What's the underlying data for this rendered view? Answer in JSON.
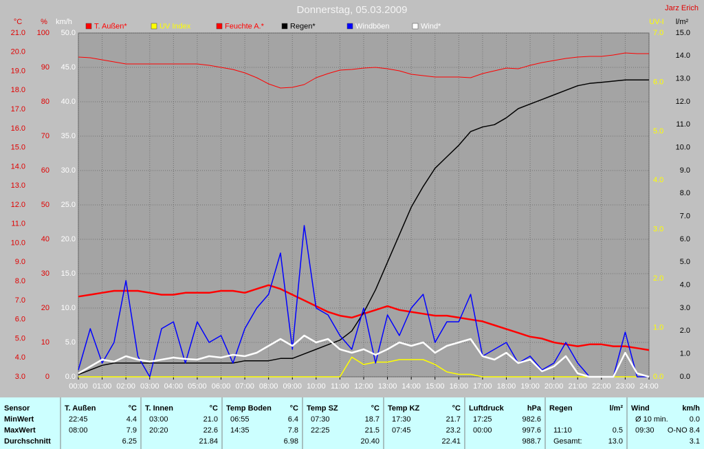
{
  "chart_data": {
    "type": "line",
    "title": "Donnerstag, 05.03.2009",
    "author": "Jarz Erich",
    "ylabel": "km/h",
    "y3label": "°C",
    "y4label": "%",
    "y5label": "UV-I",
    "y2label": "l/m²",
    "grid": true,
    "x": [
      0,
      0.5,
      1,
      1.5,
      2,
      2.5,
      3,
      3.5,
      4,
      4.5,
      5,
      5.5,
      6,
      6.5,
      7,
      7.5,
      8,
      8.5,
      9,
      9.5,
      10,
      10.5,
      11,
      11.5,
      12,
      12.5,
      13,
      13.5,
      14,
      14.5,
      15,
      15.5,
      16,
      16.5,
      17,
      17.5,
      18,
      18.5,
      19,
      19.5,
      20,
      20.5,
      21,
      21.5,
      22,
      22.5,
      23,
      23.5,
      24
    ],
    "xlim": [
      0,
      24
    ],
    "xticks": [
      {
        "value": 0,
        "label": "00:00"
      },
      {
        "value": 1,
        "label": "01:00"
      },
      {
        "value": 2,
        "label": "02:00"
      },
      {
        "value": 3,
        "label": "03:00"
      },
      {
        "value": 4,
        "label": "04:00"
      },
      {
        "value": 5,
        "label": "05:00"
      },
      {
        "value": 6,
        "label": "06:00"
      },
      {
        "value": 7,
        "label": "07:00"
      },
      {
        "value": 8,
        "label": "08:00"
      },
      {
        "value": 9,
        "label": "09:00"
      },
      {
        "value": 10,
        "label": "10:00"
      },
      {
        "value": 11,
        "label": "11:00"
      },
      {
        "value": 12,
        "label": "12:00"
      },
      {
        "value": 13,
        "label": "13:00"
      },
      {
        "value": 14,
        "label": "14:00"
      },
      {
        "value": 15,
        "label": "15:00"
      },
      {
        "value": 16,
        "label": "16:00"
      },
      {
        "value": 17,
        "label": "17:00"
      },
      {
        "value": 18,
        "label": "18:00"
      },
      {
        "value": 19,
        "label": "19:00"
      },
      {
        "value": 20,
        "label": "20:00"
      },
      {
        "value": 21,
        "label": "21:00"
      },
      {
        "value": 22,
        "label": "22:00"
      },
      {
        "value": 23,
        "label": "23:00"
      },
      {
        "value": 24,
        "label": "24:00"
      }
    ],
    "ylim": [
      0,
      50
    ],
    "yticks": [
      {
        "value": 0,
        "label": "0.0"
      },
      {
        "value": 5,
        "label": "5.0"
      },
      {
        "value": 10,
        "label": "10.0"
      },
      {
        "value": 15,
        "label": "15.0"
      },
      {
        "value": 20,
        "label": "20.0"
      },
      {
        "value": 25,
        "label": "25.0"
      },
      {
        "value": 30,
        "label": "30.0"
      },
      {
        "value": 35,
        "label": "35.0"
      },
      {
        "value": 40,
        "label": "40.0"
      },
      {
        "value": 45,
        "label": "45.0"
      },
      {
        "value": 50,
        "label": "50.0"
      }
    ],
    "y3lim": [
      3,
      21
    ],
    "y3ticks": [
      {
        "value": 3,
        "label": "3.0"
      },
      {
        "value": 4,
        "label": "4.0"
      },
      {
        "value": 5,
        "label": "5.0"
      },
      {
        "value": 6,
        "label": "6.0"
      },
      {
        "value": 7,
        "label": "7.0"
      },
      {
        "value": 8,
        "label": "8.0"
      },
      {
        "value": 9,
        "label": "9.0"
      },
      {
        "value": 10,
        "label": "10.0"
      },
      {
        "value": 11,
        "label": "11.0"
      },
      {
        "value": 12,
        "label": "12.0"
      },
      {
        "value": 13,
        "label": "13.0"
      },
      {
        "value": 14,
        "label": "14.0"
      },
      {
        "value": 15,
        "label": "15.0"
      },
      {
        "value": 16,
        "label": "16.0"
      },
      {
        "value": 17,
        "label": "17.0"
      },
      {
        "value": 18,
        "label": "18.0"
      },
      {
        "value": 19,
        "label": "19.0"
      },
      {
        "value": 20,
        "label": "20.0"
      },
      {
        "value": 21,
        "label": "21.0"
      }
    ],
    "y4lim": [
      0,
      100
    ],
    "y4ticks": [
      0,
      10,
      20,
      30,
      40,
      50,
      60,
      70,
      80,
      90,
      100
    ],
    "y5lim": [
      0,
      7
    ],
    "y5ticks": [
      {
        "value": 0,
        "label": "0.0"
      },
      {
        "value": 1,
        "label": "1.0"
      },
      {
        "value": 2,
        "label": "2.0"
      },
      {
        "value": 3,
        "label": "3.0"
      },
      {
        "value": 4,
        "label": "4.0"
      },
      {
        "value": 5,
        "label": "5.0"
      },
      {
        "value": 6,
        "label": "6.0"
      },
      {
        "value": 7,
        "label": "7.0"
      }
    ],
    "y2lim": [
      0,
      15
    ],
    "y2ticks": [
      {
        "value": 0,
        "label": "0.0"
      },
      {
        "value": 1,
        "label": "1.0"
      },
      {
        "value": 2,
        "label": "2.0"
      },
      {
        "value": 3,
        "label": "3.0"
      },
      {
        "value": 4,
        "label": "4.0"
      },
      {
        "value": 5,
        "label": "5.0"
      },
      {
        "value": 6,
        "label": "6.0"
      },
      {
        "value": 7,
        "label": "7.0"
      },
      {
        "value": 8,
        "label": "8.0"
      },
      {
        "value": 9,
        "label": "9.0"
      },
      {
        "value": 10,
        "label": "10.0"
      },
      {
        "value": 11,
        "label": "11.0"
      },
      {
        "value": 12,
        "label": "12.0"
      },
      {
        "value": 13,
        "label": "13.0"
      },
      {
        "value": 14,
        "label": "14.0"
      },
      {
        "value": 15,
        "label": "15.0"
      }
    ],
    "series": [
      {
        "name": "T. Außen*",
        "color": "#ff0000",
        "axis": "y3",
        "width": 2.5,
        "values": [
          7.2,
          7.3,
          7.4,
          7.5,
          7.5,
          7.5,
          7.4,
          7.3,
          7.3,
          7.4,
          7.4,
          7.4,
          7.5,
          7.5,
          7.4,
          7.6,
          7.8,
          7.6,
          7.3,
          7.0,
          6.7,
          6.4,
          6.2,
          6.1,
          6.3,
          6.5,
          6.7,
          6.5,
          6.4,
          6.3,
          6.2,
          6.2,
          6.1,
          6.0,
          5.9,
          5.7,
          5.5,
          5.3,
          5.1,
          5.0,
          4.8,
          4.7,
          4.6,
          4.7,
          4.7,
          4.6,
          4.6,
          4.5,
          4.4
        ]
      },
      {
        "name": "UV Index",
        "color": "#ffff00",
        "axis": "y5",
        "width": 1.5,
        "values": [
          0,
          0,
          0,
          0,
          0,
          0,
          0,
          0,
          0,
          0,
          0,
          0,
          0,
          0,
          0,
          0,
          0,
          0,
          0,
          0,
          0,
          0,
          0,
          0.4,
          0.25,
          0.3,
          0.3,
          0.35,
          0.35,
          0.35,
          0.25,
          0.1,
          0.05,
          0.05,
          0,
          0,
          0,
          0,
          0,
          0,
          0,
          0,
          0,
          0,
          0,
          0,
          0,
          0,
          0
        ]
      },
      {
        "name": "Feuchte A.*",
        "color": "#ff0000",
        "axis": "y4",
        "width": 1,
        "values": [
          93,
          92.8,
          92.2,
          91.6,
          91,
          91,
          91,
          91,
          91,
          91,
          91,
          90.6,
          90,
          89.4,
          88.4,
          87,
          85.2,
          84,
          84.2,
          85,
          87,
          88.2,
          89.2,
          89.4,
          89.8,
          90,
          89.6,
          89,
          88,
          87.6,
          87.2,
          87.2,
          87.2,
          87,
          88.2,
          89,
          89.8,
          89.6,
          90.6,
          91.4,
          92,
          92.6,
          93,
          93.2,
          93.2,
          93.6,
          94.2,
          94,
          94
        ]
      },
      {
        "name": "Regen*",
        "color": "#000000",
        "axis": "y2",
        "width": 1.5,
        "values": [
          0.1,
          0.3,
          0.5,
          0.6,
          0.6,
          0.6,
          0.6,
          0.6,
          0.6,
          0.6,
          0.6,
          0.6,
          0.6,
          0.6,
          0.7,
          0.7,
          0.7,
          0.8,
          0.8,
          1.0,
          1.2,
          1.4,
          1.6,
          2.0,
          2.8,
          3.8,
          5.0,
          6.2,
          7.4,
          8.3,
          9.1,
          9.6,
          10.1,
          10.7,
          10.9,
          11.0,
          11.3,
          11.7,
          11.9,
          12.1,
          12.3,
          12.5,
          12.7,
          12.8,
          12.85,
          12.9,
          12.95,
          12.95,
          12.95
        ]
      },
      {
        "name": "Windböen",
        "color": "#0000ff",
        "axis": "y",
        "width": 1.5,
        "values": [
          1,
          7,
          2,
          5,
          14,
          3,
          0,
          7,
          8,
          2,
          8,
          5,
          6,
          2,
          7,
          10,
          12,
          18,
          4,
          22,
          10,
          9,
          6,
          4,
          10,
          2,
          9,
          6,
          10,
          12,
          5,
          8,
          8,
          12,
          3,
          4,
          5,
          2,
          3,
          1,
          2,
          5,
          2,
          0,
          0,
          0,
          6.5,
          0,
          0
        ]
      },
      {
        "name": "Wind*",
        "color": "#ffffff",
        "axis": "y",
        "width": 2.5,
        "values": [
          0.5,
          1.5,
          2.5,
          2.2,
          3.0,
          2.5,
          2.2,
          2.5,
          2.8,
          2.6,
          2.5,
          3.0,
          2.8,
          3.2,
          3.0,
          3.5,
          4.5,
          5.5,
          4.5,
          6.0,
          5.0,
          5.5,
          4.0,
          3.5,
          4.0,
          3.2,
          4.0,
          5.0,
          4.5,
          5.0,
          3.5,
          4.5,
          5.0,
          5.5,
          3.0,
          2.5,
          3.5,
          2.0,
          2.5,
          0.8,
          1.5,
          3.0,
          0.5,
          0,
          0,
          0,
          3.5,
          0.5,
          0
        ]
      }
    ]
  },
  "table": {
    "row_labels": [
      "Sensor",
      "MinWert",
      "MaxWert",
      "Durchschnitt"
    ],
    "columns": [
      {
        "header": "T. Außen",
        "unit": "°C",
        "rows": [
          [
            "22:45",
            "4.4"
          ],
          [
            "08:00",
            "7.9"
          ],
          [
            "6.25"
          ]
        ]
      },
      {
        "header": "T. Innen",
        "unit": "°C",
        "rows": [
          [
            "03:00",
            "21.0"
          ],
          [
            "20:20",
            "22.6"
          ],
          [
            "21.84"
          ]
        ]
      },
      {
        "header": "Temp Boden",
        "unit": "°C",
        "rows": [
          [
            "06:55",
            "6.4"
          ],
          [
            "14:35",
            "7.8"
          ],
          [
            "6.98"
          ]
        ]
      },
      {
        "header": "Temp SZ",
        "unit": "°C",
        "rows": [
          [
            "07:30",
            "18.7"
          ],
          [
            "22:25",
            "21.5"
          ],
          [
            "20.40"
          ]
        ]
      },
      {
        "header": "Temp KZ",
        "unit": "°C",
        "rows": [
          [
            "17:30",
            "21.7"
          ],
          [
            "07:45",
            "23.2"
          ],
          [
            "22.41"
          ]
        ]
      },
      {
        "header": "Luftdruck",
        "unit": "hPa",
        "rows": [
          [
            "17:25",
            "982.6"
          ],
          [
            "00:00",
            "997.6"
          ],
          [
            "988.7"
          ]
        ]
      },
      {
        "header": "Regen",
        "unit": "l/m²",
        "rows": [
          [],
          [
            "11:10",
            "0.5"
          ],
          [
            "Gesamt:",
            "13.0"
          ]
        ]
      },
      {
        "header": "Wind",
        "unit": "km/h",
        "rows": [
          [
            "Ø 10 min.",
            "0.0"
          ],
          [
            "09:30",
            "O-NO 8.4"
          ],
          [
            "3.1"
          ]
        ]
      }
    ]
  }
}
